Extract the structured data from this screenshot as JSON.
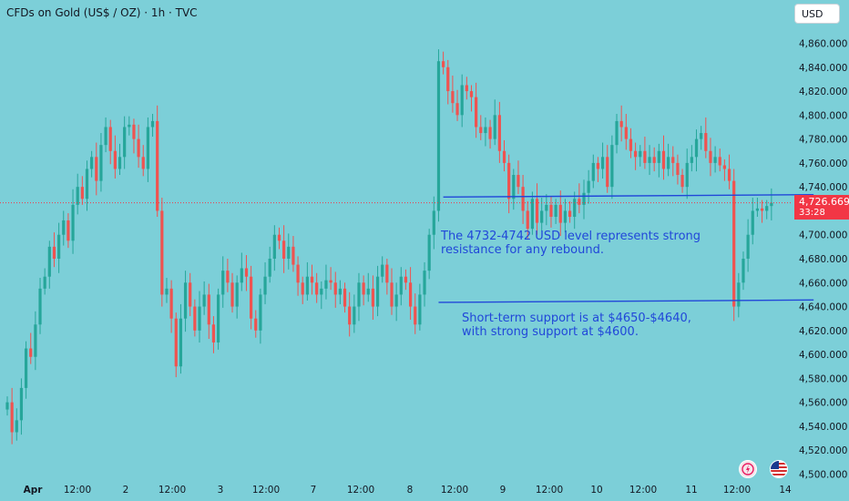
{
  "header": {
    "title": "CFDs on Gold (US$ / OZ) · 1h · TVC",
    "currency": "USD"
  },
  "last_price": {
    "value": "4,726.669",
    "countdown": "33:28",
    "color": "#f23645"
  },
  "annotations": {
    "resistance_line1": "The 4732-4742 USD level represents strong",
    "resistance_line2": "resistance for any rebound.",
    "support_line1": "Short-term support is at $4650-$4640,",
    "support_line2": "with strong support at $4600."
  },
  "icons": {
    "left": "flash-icon",
    "right": "us-flag-icon"
  },
  "colors": {
    "background": "#7ccfd8",
    "up": "#26a69a",
    "down": "#ef5350",
    "annotation": "#2147d9"
  },
  "chart_data": {
    "type": "candlestick",
    "title": "CFDs on Gold (US$ / OZ) · 1h · TVC",
    "ylim": [
      4495,
      4875
    ],
    "y_ticks": [
      4500,
      4520,
      4540,
      4560,
      4580,
      4600,
      4620,
      4640,
      4660,
      4680,
      4700,
      4720,
      4740,
      4760,
      4780,
      4800,
      4820,
      4840,
      4860
    ],
    "y_tick_labels": [
      "4,500.000",
      "4,520.000",
      "4,540.000",
      "4,560.000",
      "4,580.000",
      "4,600.000",
      "4,620.000",
      "4,640.000",
      "4,660.000",
      "4,680.000",
      "4,700.000",
      "4,720.000",
      "4,740.000",
      "4,760.000",
      "4,780.000",
      "4,800.000",
      "4,820.000",
      "4,840.000",
      "4,860.000"
    ],
    "x_tick_labels": [
      "Apr",
      "12:00",
      "2",
      "12:00",
      "3",
      "12:00",
      "7",
      "12:00",
      "8",
      "12:00",
      "9",
      "12:00",
      "10",
      "12:00",
      "11",
      "12:00",
      "14"
    ],
    "x_tick_bold": [
      "Apr"
    ],
    "last_price": 4726.669,
    "horizontal_levels": [
      {
        "from_index": 93,
        "to_index": 172,
        "start": 4731.5,
        "end": 4733.5
      },
      {
        "from_index": 92,
        "to_index": 172,
        "start": 4643.5,
        "end": 4645.5
      }
    ],
    "candle_closes": [
      4560,
      4535,
      4545,
      4572,
      4605,
      4598,
      4625,
      4655,
      4665,
      4690,
      4680,
      4700,
      4712,
      4695,
      4725,
      4740,
      4730,
      4755,
      4765,
      4745,
      4775,
      4790,
      4770,
      4755,
      4765,
      4790,
      4792,
      4780,
      4765,
      4755,
      4790,
      4795,
      4720,
      4650,
      4655,
      4630,
      4590,
      4630,
      4660,
      4640,
      4620,
      4640,
      4650,
      4625,
      4610,
      4650,
      4670,
      4660,
      4640,
      4660,
      4672,
      4665,
      4630,
      4620,
      4650,
      4665,
      4680,
      4700,
      4695,
      4680,
      4690,
      4675,
      4660,
      4650,
      4665,
      4660,
      4650,
      4655,
      4662,
      4660,
      4650,
      4655,
      4640,
      4625,
      4640,
      4660,
      4650,
      4655,
      4640,
      4665,
      4675,
      4660,
      4640,
      4650,
      4665,
      4660,
      4640,
      4625,
      4650,
      4670,
      4700,
      4720,
      4845,
      4840,
      4820,
      4810,
      4800,
      4825,
      4820,
      4815,
      4790,
      4785,
      4790,
      4780,
      4800,
      4770,
      4760,
      4730,
      4750,
      4740,
      4720,
      4705,
      4730,
      4710,
      4720,
      4725,
      4715,
      4725,
      4710,
      4720,
      4715,
      4730,
      4725,
      4735,
      4745,
      4760,
      4755,
      4765,
      4740,
      4775,
      4795,
      4790,
      4780,
      4770,
      4765,
      4770,
      4760,
      4765,
      4760,
      4770,
      4755,
      4765,
      4760,
      4750,
      4740,
      4760,
      4765,
      4780,
      4785,
      4770,
      4760,
      4765,
      4758,
      4755,
      4745,
      4640,
      4660,
      4680,
      4700,
      4720,
      4722,
      4720,
      4724,
      4726.669
    ]
  }
}
